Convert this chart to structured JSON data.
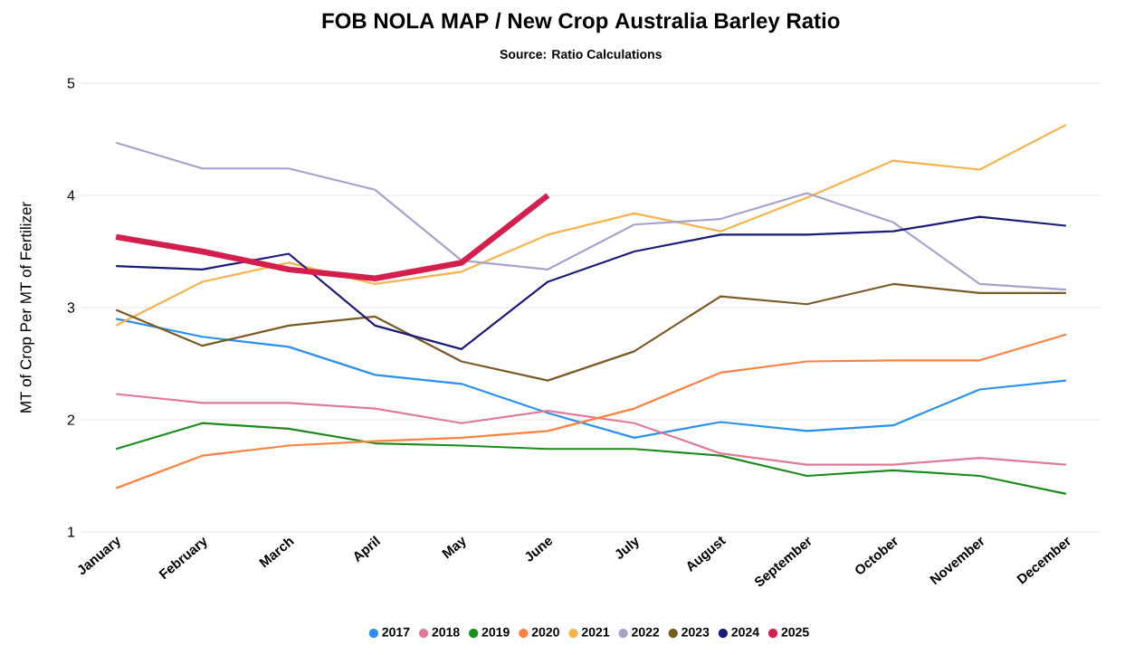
{
  "chart_data": {
    "type": "line",
    "title": "FOB NOLA MAP / New Crop Australia Barley Ratio",
    "subtitle": "Source: Ratio Calculations",
    "ylabel": "MT of Crop Per MT of Fertilizer",
    "categories": [
      "January",
      "February",
      "March",
      "April",
      "May",
      "June",
      "July",
      "August",
      "September",
      "October",
      "November",
      "December"
    ],
    "ylim": [
      1,
      5
    ],
    "yticks": [
      1,
      2,
      3,
      4,
      5
    ],
    "grid": "y",
    "legend": "bottom",
    "marker": "none",
    "line_style": "solid",
    "series": [
      {
        "name": "2017",
        "color": "#2b8ff0",
        "values": [
          2.9,
          2.74,
          2.65,
          2.4,
          2.32,
          2.06,
          1.84,
          1.98,
          1.9,
          1.95,
          2.27,
          2.35
        ]
      },
      {
        "name": "2018",
        "color": "#e07a96",
        "values": [
          2.23,
          2.15,
          2.15,
          2.1,
          1.97,
          2.08,
          1.97,
          1.7,
          1.6,
          1.6,
          1.66,
          1.6
        ]
      },
      {
        "name": "2019",
        "color": "#1a8c1a",
        "values": [
          1.74,
          1.97,
          1.92,
          1.79,
          1.77,
          1.74,
          1.74,
          1.68,
          1.5,
          1.55,
          1.5,
          1.34
        ]
      },
      {
        "name": "2020",
        "color": "#ff8040",
        "values": [
          1.39,
          1.68,
          1.77,
          1.81,
          1.84,
          1.9,
          2.1,
          2.42,
          2.52,
          2.53,
          2.53,
          2.76
        ]
      },
      {
        "name": "2021",
        "color": "#f9b24a",
        "values": [
          2.84,
          3.23,
          3.4,
          3.21,
          3.32,
          3.65,
          3.84,
          3.68,
          3.98,
          4.31,
          4.23,
          4.63
        ]
      },
      {
        "name": "2022",
        "color": "#a3a3cc",
        "values": [
          4.47,
          4.24,
          4.24,
          4.05,
          3.42,
          3.34,
          3.74,
          3.79,
          4.02,
          3.76,
          3.21,
          3.16
        ]
      },
      {
        "name": "2023",
        "color": "#7a5a24",
        "values": [
          2.98,
          2.66,
          2.84,
          2.92,
          2.52,
          2.35,
          2.61,
          3.1,
          3.03,
          3.21,
          3.13,
          3.13
        ]
      },
      {
        "name": "2024",
        "color": "#1a1a78",
        "values": [
          3.37,
          3.34,
          3.48,
          2.84,
          2.63,
          3.23,
          3.5,
          3.65,
          3.65,
          3.68,
          3.81,
          3.73
        ]
      },
      {
        "name": "2025",
        "color": "#d41e4c",
        "values": [
          3.63,
          3.5,
          3.34,
          3.26,
          3.4,
          4.0,
          null,
          null,
          null,
          null,
          null,
          null
        ]
      }
    ]
  }
}
